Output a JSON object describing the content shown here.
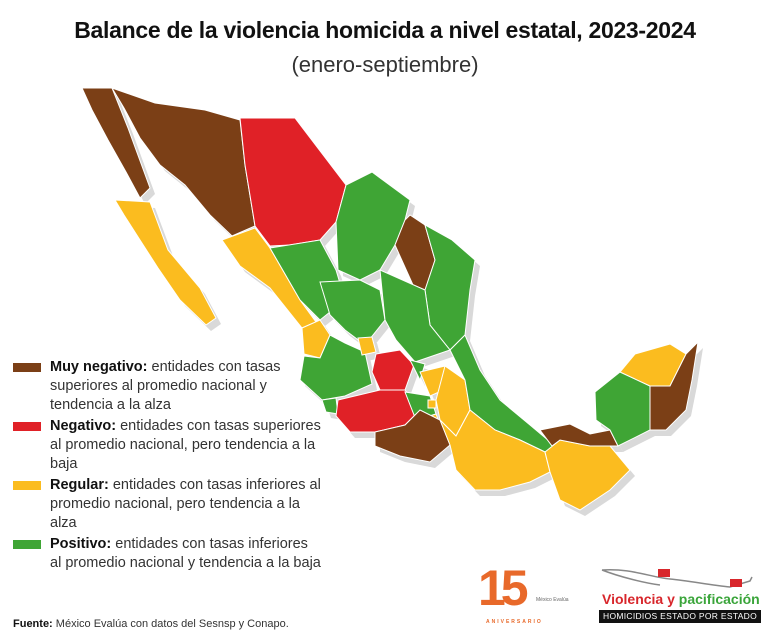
{
  "header": {
    "title": "Balance de la violencia homicida a nivel estatal, 2023-2024",
    "subtitle": "(enero-septiembre)"
  },
  "colors": {
    "muy_negativo": "#7b3f16",
    "negativo": "#e02127",
    "regular": "#fbbc1f",
    "positivo": "#3fa535",
    "border": "#ffffff"
  },
  "legend": [
    {
      "key": "muy_negativo",
      "label": "Muy negativo:",
      "text": "entidades con tasas superiores al promedio nacional y tendencia a la alza"
    },
    {
      "key": "negativo",
      "label": "Negativo:",
      "text": "entidades con tasas superiores al promedio nacional, pero tendencia a la baja"
    },
    {
      "key": "regular",
      "label": "Regular:",
      "text": "entidades con tasas inferiores al promedio nacional, pero tendencia a la alza"
    },
    {
      "key": "positivo",
      "label": "Positivo:",
      "text": "entidades con tasas inferiores al promedio nacional y tendencia a la baja"
    }
  ],
  "map_data": {
    "BC": "muy_negativo",
    "BCS": "regular",
    "SON": "muy_negativo",
    "CHH": "negativo",
    "SIN": "regular",
    "DUR": "positivo",
    "COA": "positivo",
    "NLE": "muy_negativo",
    "TAM": "positivo",
    "ZAC": "positivo",
    "NAY": "regular",
    "SLP": "positivo",
    "JAL": "positivo",
    "AGU": "regular",
    "GUA": "negativo",
    "COL": "positivo",
    "MIC": "negativo",
    "QUE": "positivo",
    "HID": "regular",
    "MEX": "positivo",
    "CMX": "regular",
    "MOR": "regular",
    "TLA": "regular",
    "GRO": "muy_negativo",
    "PUE": "regular",
    "VER": "positivo",
    "OAX": "regular",
    "CHP": "regular",
    "TAB": "muy_negativo",
    "CAM": "positivo",
    "YUC": "regular",
    "ROO": "muy_negativo"
  },
  "source": {
    "label": "Fuente:",
    "text": "México Evalúa con datos del Sesnsp y Conapo."
  },
  "logos": {
    "anniversary_number": "15",
    "anniversary_org": "México Evalúa",
    "anniversary_text": "ANIVERSARIO",
    "vp_word1": "Violencia",
    "vp_word2": "y",
    "vp_word3": "pacificación",
    "vp_subtitle": "HOMICIDIOS ESTADO POR ESTADO"
  }
}
